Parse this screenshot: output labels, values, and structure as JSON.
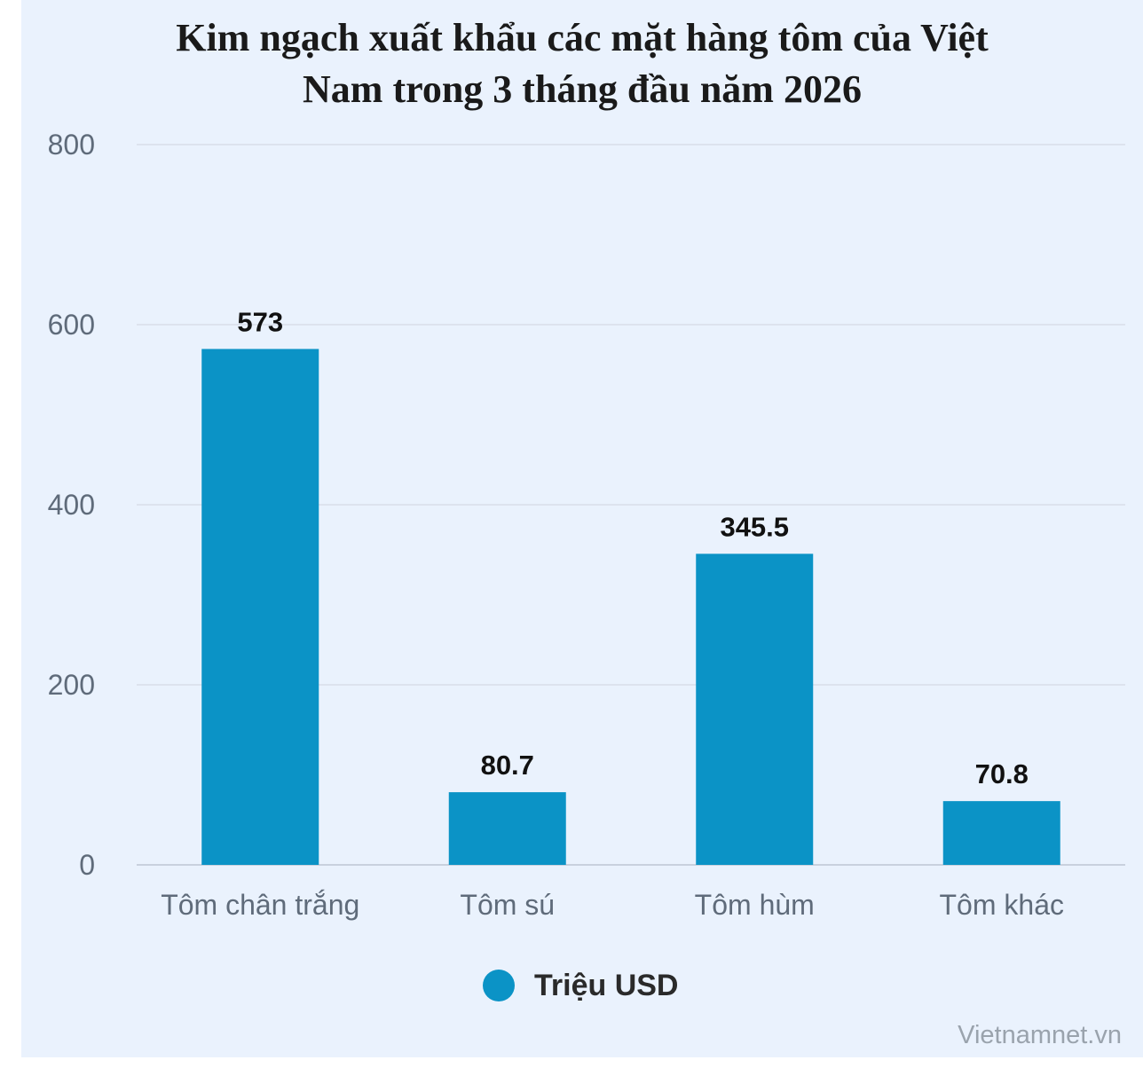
{
  "chart_data": {
    "type": "bar",
    "title_lines": [
      "Kim ngạch xuất khẩu các mặt hàng tôm của Việt",
      "Nam trong 3 tháng đầu năm 2026"
    ],
    "categories": [
      "Tôm chân trắng",
      "Tôm sú",
      "Tôm hùm",
      "Tôm khác"
    ],
    "series": [
      {
        "name": "Triệu USD",
        "values": [
          573,
          80.7,
          345.5,
          70.8
        ],
        "data_labels": [
          "573",
          "80.7",
          "345.5",
          "70.8"
        ]
      }
    ],
    "ylim": [
      0,
      800
    ],
    "yticks": [
      0,
      200,
      400,
      600,
      800
    ],
    "grid": true,
    "legend_position": "bottom-center",
    "bar_color": "#0b93c6"
  },
  "watermark": "Vietnamnet.vn"
}
